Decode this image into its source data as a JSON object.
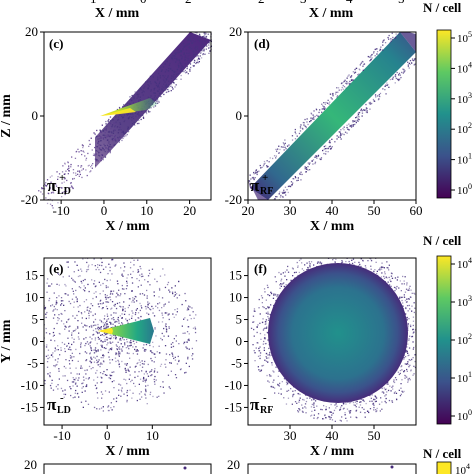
{
  "top_cut": {
    "xlabels": [
      "X / mm",
      "X / mm"
    ]
  },
  "colorbars": [
    {
      "title": "N / cell",
      "ticks": [
        "10^5",
        "10^4",
        "10^3",
        "10^2",
        "10^1",
        "10^0"
      ]
    },
    {
      "title": "N / cell",
      "ticks": [
        "10^4",
        "10^3",
        "10^2",
        "10^1",
        "10^0"
      ]
    },
    {
      "title": "N / cell",
      "ticks": [
        "10^4"
      ]
    }
  ],
  "panels": [
    {
      "id": "c",
      "letter": "(c)",
      "particle": "π",
      "sup": "+",
      "sub": "LD",
      "xlabel": "X / mm",
      "ylabel": "Z / mm",
      "xticks": [
        "-10",
        "0",
        "10",
        "20"
      ],
      "yticks": [
        "20",
        "0",
        "-20"
      ]
    },
    {
      "id": "d",
      "letter": "(d)",
      "particle": "π",
      "sup": "+",
      "sub": "RF",
      "xlabel": "X / mm",
      "ylabel": "",
      "xticks": [
        "20",
        "30",
        "40",
        "50",
        "60"
      ],
      "yticks": [
        "20",
        "0",
        "-20"
      ]
    },
    {
      "id": "e",
      "letter": "(e)",
      "particle": "π",
      "sup": "-",
      "sub": "LD",
      "xlabel": "X / mm",
      "ylabel": "Y / mm",
      "xticks": [
        "-10",
        "0",
        "10"
      ],
      "yticks": [
        "15",
        "10",
        "5",
        "0",
        "-5",
        "-10",
        "-15"
      ]
    },
    {
      "id": "f",
      "letter": "(f)",
      "particle": "π",
      "sup": "-",
      "sub": "RF",
      "xlabel": "X / mm",
      "ylabel": "",
      "xticks": [
        "30",
        "40",
        "50"
      ],
      "yticks": [
        "15",
        "10",
        "5",
        "0",
        "-5",
        "-10",
        "-15"
      ]
    }
  ],
  "bottom_cut": {
    "yticks": [
      "20",
      "20"
    ]
  },
  "chart_data": [
    {
      "type": "heatmap",
      "panel": "(c)",
      "title": "",
      "xlabel": "X / mm",
      "ylabel": "Z / mm",
      "xlim": [
        -14,
        25
      ],
      "ylim": [
        -20,
        20
      ],
      "colorscale": "viridis",
      "log_scale": true,
      "color_range": [
        1,
        100000
      ],
      "description_values": {
        "band_start": [
          -13,
          -20
        ],
        "band_end": [
          25,
          20
        ],
        "peak_region_x": [
          1,
          11
        ]
      }
    },
    {
      "type": "heatmap",
      "panel": "(d)",
      "title": "",
      "xlabel": "X / mm",
      "ylabel": "",
      "xlim": [
        20,
        60
      ],
      "ylim": [
        -20,
        20
      ],
      "colorscale": "viridis",
      "log_scale": true,
      "color_range": [
        1,
        100000
      ],
      "description_values": {
        "band_start": [
          20,
          -20
        ],
        "band_end": [
          60,
          20
        ]
      }
    },
    {
      "type": "heatmap",
      "panel": "(e)",
      "title": "",
      "xlabel": "X / mm",
      "ylabel": "Y / mm",
      "xlim": [
        -14,
        23
      ],
      "ylim": [
        -19,
        19
      ],
      "colorscale": "viridis",
      "log_scale": true,
      "color_range": [
        1,
        10000
      ],
      "description_values": {
        "cone_apex": [
          0,
          0
        ],
        "cone_end_x": 12
      }
    },
    {
      "type": "heatmap",
      "panel": "(f)",
      "title": "",
      "xlabel": "X / mm",
      "ylabel": "",
      "xlim": [
        20,
        60
      ],
      "ylim": [
        -19,
        19
      ],
      "colorscale": "viridis",
      "log_scale": true,
      "color_range": [
        1,
        10000
      ],
      "description_values": {
        "disk_center": [
          40,
          0
        ],
        "disk_radius": 13
      }
    }
  ],
  "colors": {
    "viridis_dark": "#440154",
    "viridis_mid": "#21918c",
    "viridis_yellow": "#fde725"
  }
}
